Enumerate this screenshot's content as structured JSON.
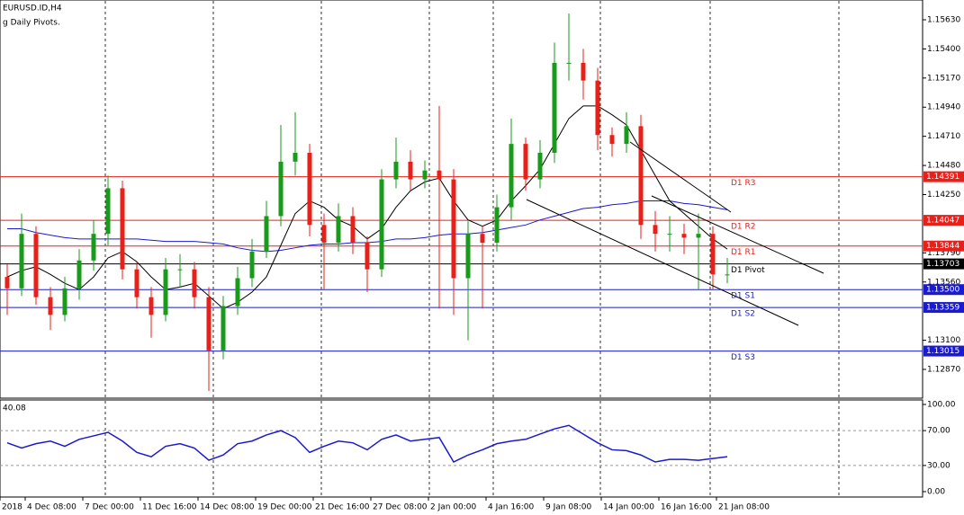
{
  "chart_data": {
    "type": "candlestick",
    "title": "EURUSD.ID,H4",
    "subtitle": "g Daily Pivots.",
    "x_labels": [
      "2018",
      "4 Dec 08:00",
      "7 Dec 00:00",
      "11 Dec 16:00",
      "14 Dec 08:00",
      "19 Dec 00:00",
      "21 Dec 16:00",
      "27 Dec 08:00",
      "2 Jan 00:00",
      "4 Jan 16:00",
      "9 Jan 08:00",
      "14 Jan 00:00",
      "16 Jan 16:00",
      "21 Jan 08:00"
    ],
    "ylim": [
      1.12643,
      1.15786
    ],
    "yticks": [
      {
        "value": 1.1563,
        "label": "1.15630"
      },
      {
        "value": 1.154,
        "label": "1.15400"
      },
      {
        "value": 1.1517,
        "label": "1.15170"
      },
      {
        "value": 1.1494,
        "label": "1.14940"
      },
      {
        "value": 1.1471,
        "label": "1.14710"
      },
      {
        "value": 1.1448,
        "label": "1.14480"
      },
      {
        "value": 1.1425,
        "label": "1.14250"
      },
      {
        "value": 1.1379,
        "label": "1.13790"
      },
      {
        "value": 1.1356,
        "label": "1.13560"
      },
      {
        "value": 1.131,
        "label": "1.13100"
      },
      {
        "value": 1.1287,
        "label": "1.12870"
      }
    ],
    "up_color": "#1a9a1a",
    "down_color": "#e8201a",
    "open": [
      1.136,
      1.1351,
      1.1394,
      1.1344,
      1.133,
      1.1351,
      1.1373,
      1.1394,
      1.143,
      1.1366,
      1.1344,
      1.133,
      1.1366,
      1.1366,
      1.1344,
      1.1302,
      1.1337,
      1.1359,
      1.138,
      1.1408,
      1.1451,
      1.1458,
      1.1401,
      1.1387,
      1.1408,
      1.1387,
      1.1366,
      1.1437,
      1.1451,
      1.1437,
      1.1444,
      1.1437,
      1.1359,
      1.1394,
      1.1387,
      1.1415,
      1.1465,
      1.1437,
      1.1458,
      1.1529,
      1.1529,
      1.1515,
      1.1472,
      1.1465,
      1.1479,
      1.1401,
      1.1394,
      1.1394,
      1.1391,
      1.1394,
      1.1362
    ],
    "high": [
      1.137,
      1.141,
      1.14,
      1.1352,
      1.136,
      1.1382,
      1.1405,
      1.144,
      1.1436,
      1.1372,
      1.1352,
      1.1375,
      1.1378,
      1.1372,
      1.1352,
      1.1345,
      1.1368,
      1.139,
      1.142,
      1.148,
      1.149,
      1.1465,
      1.141,
      1.1418,
      1.1415,
      1.1392,
      1.1445,
      1.147,
      1.146,
      1.1452,
      1.1495,
      1.1445,
      1.1404,
      1.14,
      1.1425,
      1.1485,
      1.147,
      1.1468,
      1.1545,
      1.1568,
      1.154,
      1.1525,
      1.1478,
      1.149,
      1.1488,
      1.1412,
      1.1408,
      1.1402,
      1.141,
      1.14,
      1.1375
    ],
    "low": [
      1.133,
      1.1345,
      1.1338,
      1.1318,
      1.1325,
      1.1342,
      1.1365,
      1.1385,
      1.1358,
      1.1335,
      1.1312,
      1.1325,
      1.1352,
      1.1335,
      1.127,
      1.1295,
      1.133,
      1.1352,
      1.1375,
      1.14,
      1.144,
      1.1392,
      1.135,
      1.138,
      1.1378,
      1.1348,
      1.136,
      1.143,
      1.1428,
      1.143,
      1.1335,
      1.133,
      1.131,
      1.1335,
      1.138,
      1.1405,
      1.1428,
      1.143,
      1.145,
      1.1515,
      1.15,
      1.146,
      1.1455,
      1.1458,
      1.139,
      1.138,
      1.138,
      1.1378,
      1.135,
      1.135,
      1.1355
    ],
    "close": [
      1.1351,
      1.1394,
      1.1344,
      1.133,
      1.1351,
      1.1373,
      1.1394,
      1.143,
      1.1366,
      1.1344,
      1.133,
      1.1366,
      1.1366,
      1.1344,
      1.1302,
      1.1337,
      1.1359,
      1.138,
      1.1408,
      1.1451,
      1.1458,
      1.1401,
      1.1387,
      1.1408,
      1.1387,
      1.1366,
      1.1437,
      1.1451,
      1.1437,
      1.1444,
      1.1437,
      1.1359,
      1.1394,
      1.1387,
      1.1415,
      1.1465,
      1.1437,
      1.1458,
      1.1529,
      1.1529,
      1.1515,
      1.1472,
      1.1465,
      1.1479,
      1.1401,
      1.1394,
      1.1394,
      1.1391,
      1.1394,
      1.1362,
      1.1362
    ],
    "lines": [
      {
        "color": "#1a1ad0",
        "values": [
          1.1398,
          1.1398,
          1.1395,
          1.1393,
          1.1391,
          1.139,
          1.139,
          1.139,
          1.139,
          1.139,
          1.1389,
          1.1388,
          1.1388,
          1.1388,
          1.1387,
          1.1386,
          1.1383,
          1.1381,
          1.138,
          1.1381,
          1.1383,
          1.1385,
          1.1386,
          1.1386,
          1.1387,
          1.1387,
          1.1388,
          1.139,
          1.139,
          1.1391,
          1.1393,
          1.1394,
          1.1394,
          1.1395,
          1.1397,
          1.1399,
          1.1401,
          1.1405,
          1.1408,
          1.1411,
          1.1414,
          1.1415,
          1.1417,
          1.1418,
          1.142,
          1.142,
          1.142,
          1.1418,
          1.1417,
          1.1415,
          1.1413
        ]
      },
      {
        "color": "#000000",
        "values": [
          1.136,
          1.1365,
          1.1368,
          1.1362,
          1.1355,
          1.135,
          1.136,
          1.1375,
          1.138,
          1.1372,
          1.136,
          1.135,
          1.1352,
          1.1355,
          1.1345,
          1.1335,
          1.134,
          1.1348,
          1.136,
          1.1385,
          1.141,
          1.142,
          1.1415,
          1.1405,
          1.14,
          1.139,
          1.1398,
          1.1415,
          1.1428,
          1.1435,
          1.1438,
          1.142,
          1.1405,
          1.14,
          1.1405,
          1.142,
          1.1432,
          1.1445,
          1.1465,
          1.1485,
          1.1495,
          1.1495,
          1.1488,
          1.148,
          1.146,
          1.144,
          1.142,
          1.141,
          1.14,
          1.139,
          1.1382
        ]
      }
    ],
    "levels": [
      {
        "name": "D1 R3",
        "value": 1.14391,
        "value_label": "1.14391",
        "color": "#e8201a"
      },
      {
        "name": "D1 R2",
        "value": 1.14047,
        "value_label": "1.14047",
        "color": "#e8201a"
      },
      {
        "name": "D1 R1",
        "value": 1.13844,
        "value_label": "1.13844",
        "color": "#e8201a"
      },
      {
        "name": "D1 Pivot",
        "value": 1.13703,
        "value_label": "1.13703",
        "color": "#000000"
      },
      {
        "name": "D1 S1",
        "value": 1.135,
        "value_label": "1.13500",
        "color": "#1a1ad0"
      },
      {
        "name": "D1 S2",
        "value": 1.13359,
        "value_label": "1.13359",
        "color": "#1a1ad0"
      },
      {
        "name": "D1 S3",
        "value": 1.13015,
        "value_label": "1.13015",
        "color": "#1a1ad0"
      }
    ],
    "rsi": {
      "color": "#1a1ad0",
      "ylim": [
        0,
        100
      ],
      "yticks": [
        {
          "value": 100,
          "label": "100.00"
        },
        {
          "value": 70,
          "label": "70.00"
        },
        {
          "value": 30,
          "label": "30.00"
        },
        {
          "value": 0,
          "label": "0.00"
        }
      ],
      "levels": [
        70,
        30
      ],
      "values": [
        56,
        50,
        55,
        58,
        52,
        60,
        64,
        68,
        58,
        45,
        40,
        52,
        55,
        50,
        36,
        42,
        55,
        58,
        65,
        70,
        62,
        45,
        52,
        58,
        56,
        48,
        60,
        65,
        58,
        60,
        62,
        34,
        42,
        48,
        55,
        58,
        60,
        66,
        72,
        76,
        66,
        56,
        48,
        47,
        42,
        34,
        37,
        37,
        36,
        38,
        40.08
      ]
    }
  }
}
